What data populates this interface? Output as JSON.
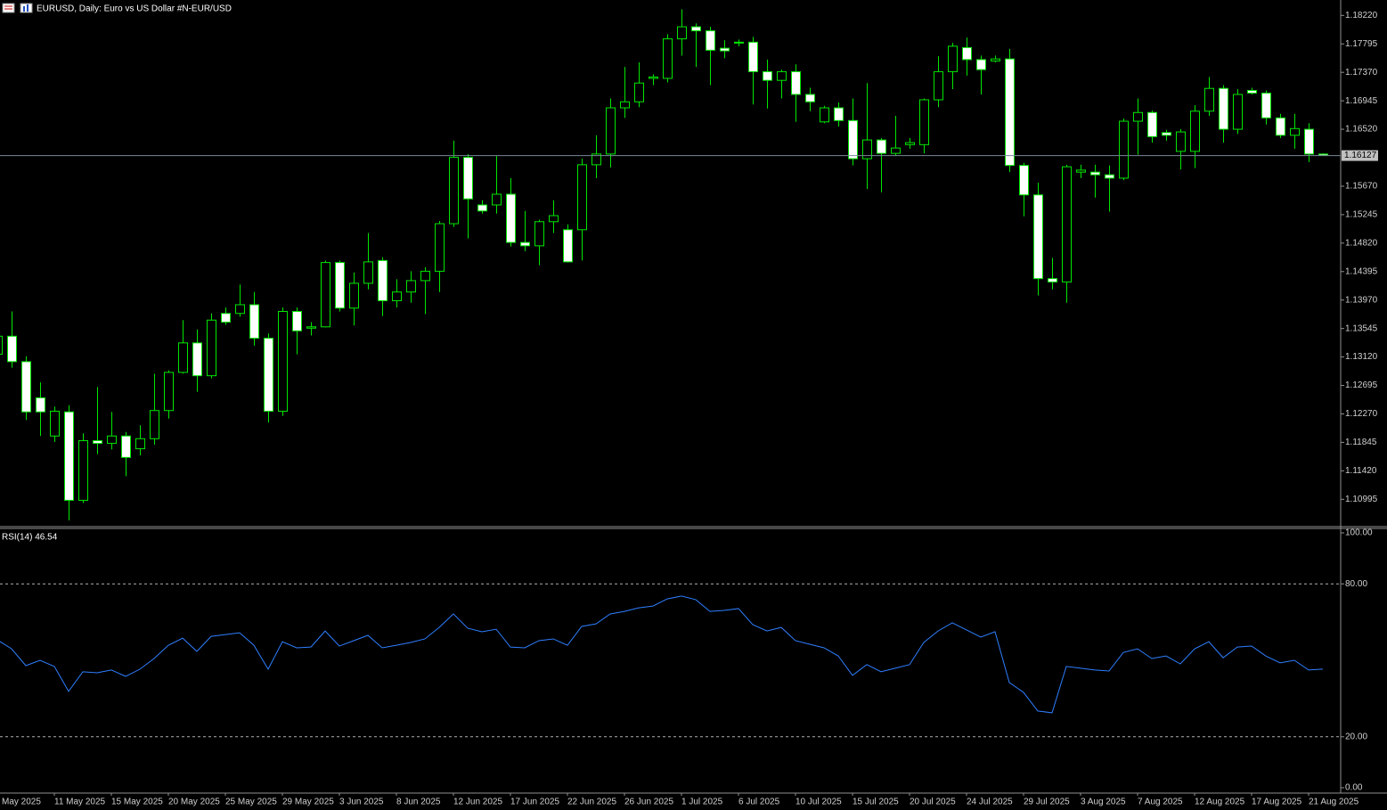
{
  "chart_data": [
    {
      "type": "candlestick",
      "title": "EURUSD, Daily:  Euro vs US Dollar #N-EUR/USD",
      "categories": [
        "May 2025",
        null,
        null,
        null,
        "11 May 2025",
        null,
        null,
        null,
        "15 May 2025",
        null,
        null,
        null,
        "20 May 2025",
        null,
        null,
        null,
        "25 May 2025",
        null,
        null,
        null,
        "29 May 2025",
        null,
        null,
        null,
        "3 Jun 2025",
        null,
        null,
        null,
        "8 Jun 2025",
        null,
        null,
        null,
        "12 Jun 2025",
        null,
        null,
        null,
        "17 Jun 2025",
        null,
        null,
        null,
        "22 Jun 2025",
        null,
        null,
        null,
        "26 Jun 2025",
        null,
        null,
        null,
        "1 Jul 2025",
        null,
        null,
        null,
        "6 Jul 2025",
        null,
        null,
        null,
        "10 Jul 2025",
        null,
        null,
        null,
        "15 Jul 2025",
        null,
        null,
        null,
        "20 Jul 2025",
        null,
        null,
        null,
        "24 Jul 2025",
        null,
        null,
        null,
        "29 Jul 2025",
        null,
        null,
        null,
        "3 Aug 2025",
        null,
        null,
        null,
        "7 Aug 2025",
        null,
        null,
        null,
        "12 Aug 2025",
        null,
        null,
        null,
        "17 Aug 2025",
        null,
        null,
        null,
        "21 Aug 2025",
        null
      ],
      "open": [
        1.1316,
        1.1343,
        1.1305,
        1.1251,
        1.1194,
        1.123,
        1.1098,
        1.1187,
        1.1183,
        1.1194,
        1.1175,
        1.119,
        1.1232,
        1.1289,
        1.1333,
        1.1284,
        1.1377,
        1.1377,
        1.139,
        1.134,
        1.1231,
        1.138,
        1.1355,
        1.1357,
        1.1453,
        1.1385,
        1.1422,
        1.1456,
        1.1396,
        1.1409,
        1.1426,
        1.144,
        1.1511,
        1.161,
        1.1539,
        1.1539,
        1.1555,
        1.1483,
        1.1478,
        1.1514,
        1.1502,
        1.1502,
        1.1599,
        1.1615,
        1.1684,
        1.1693,
        1.1728,
        1.1728,
        1.1787,
        1.1805,
        1.1799,
        1.1773,
        1.1781,
        1.1782,
        1.1738,
        1.1725,
        1.1738,
        1.1704,
        1.1663,
        1.1684,
        1.1665,
        1.1608,
        1.1636,
        1.1616,
        1.1629,
        1.1629,
        1.1696,
        1.1738,
        1.1774,
        1.1756,
        1.1754,
        1.1757,
        1.1598,
        1.1554,
        1.1429,
        1.1424,
        1.1588,
        1.1588,
        1.1584,
        1.1579,
        1.1664,
        1.1677,
        1.1647,
        1.1619,
        1.1619,
        1.1679,
        1.1713,
        1.1652,
        1.171,
        1.1706,
        1.1669,
        1.1643,
        1.1652,
        1.1615
      ],
      "high": [
        1.1353,
        1.138,
        1.1313,
        1.1274,
        1.1238,
        1.124,
        1.1198,
        1.1267,
        1.123,
        1.12,
        1.121,
        1.1287,
        1.1292,
        1.1367,
        1.1353,
        1.1377,
        1.1386,
        1.142,
        1.1409,
        1.1347,
        1.1386,
        1.1386,
        1.1364,
        1.1456,
        1.1456,
        1.1438,
        1.1497,
        1.1461,
        1.1428,
        1.144,
        1.1446,
        1.1515,
        1.1635,
        1.1615,
        1.1546,
        1.1612,
        1.1579,
        1.153,
        1.1517,
        1.1546,
        1.151,
        1.1608,
        1.1643,
        1.1698,
        1.1745,
        1.1752,
        1.1734,
        1.1794,
        1.1831,
        1.181,
        1.1805,
        1.1785,
        1.1786,
        1.179,
        1.1756,
        1.1741,
        1.1749,
        1.1714,
        1.1687,
        1.1692,
        1.1698,
        1.1721,
        1.1639,
        1.1672,
        1.1639,
        1.1698,
        1.1761,
        1.1781,
        1.1789,
        1.1762,
        1.1762,
        1.1772,
        1.1602,
        1.1572,
        1.146,
        1.1599,
        1.1599,
        1.1599,
        1.1598,
        1.1668,
        1.1698,
        1.168,
        1.1651,
        1.1652,
        1.1688,
        1.173,
        1.1718,
        1.1712,
        1.1714,
        1.171,
        1.1675,
        1.1675,
        1.1661,
        1.1616
      ],
      "low": [
        1.1313,
        1.1296,
        1.1218,
        1.1194,
        1.1185,
        1.1068,
        1.1094,
        1.1167,
        1.1174,
        1.1134,
        1.1165,
        1.1181,
        1.122,
        1.1287,
        1.126,
        1.128,
        1.136,
        1.1372,
        1.1329,
        1.1214,
        1.1224,
        1.1316,
        1.1344,
        1.1356,
        1.138,
        1.1359,
        1.1413,
        1.1373,
        1.1386,
        1.1393,
        1.1376,
        1.1409,
        1.1506,
        1.1489,
        1.1526,
        1.1526,
        1.1477,
        1.147,
        1.1449,
        1.1497,
        1.1453,
        1.1456,
        1.1579,
        1.1595,
        1.1669,
        1.1685,
        1.1718,
        1.1722,
        1.1762,
        1.1745,
        1.1718,
        1.1758,
        1.1776,
        1.1689,
        1.1683,
        1.1698,
        1.1663,
        1.1679,
        1.1661,
        1.1656,
        1.1598,
        1.1563,
        1.1558,
        1.1612,
        1.1623,
        1.1616,
        1.1685,
        1.1712,
        1.1732,
        1.1704,
        1.1752,
        1.1588,
        1.1522,
        1.1404,
        1.1413,
        1.1393,
        1.1579,
        1.155,
        1.1529,
        1.1576,
        1.1614,
        1.1632,
        1.1635,
        1.1592,
        1.1594,
        1.1672,
        1.1632,
        1.1645,
        1.1704,
        1.1659,
        1.1639,
        1.1623,
        1.1603,
        1.1612
      ],
      "close": [
        1.1343,
        1.1305,
        1.123,
        1.123,
        1.1231,
        1.1098,
        1.1187,
        1.1183,
        1.1194,
        1.1162,
        1.119,
        1.1232,
        1.1289,
        1.1333,
        1.1284,
        1.1367,
        1.1364,
        1.139,
        1.134,
        1.1231,
        1.138,
        1.1351,
        1.1357,
        1.1453,
        1.1385,
        1.1422,
        1.1454,
        1.1396,
        1.1409,
        1.1426,
        1.144,
        1.1511,
        1.161,
        1.1548,
        1.153,
        1.1555,
        1.1483,
        1.1478,
        1.1514,
        1.1523,
        1.1454,
        1.1599,
        1.1615,
        1.1684,
        1.1693,
        1.1721,
        1.173,
        1.1787,
        1.1805,
        1.1799,
        1.177,
        1.1769,
        1.1782,
        1.1738,
        1.1725,
        1.1738,
        1.1704,
        1.1693,
        1.1684,
        1.1665,
        1.1608,
        1.1636,
        1.1616,
        1.1624,
        1.1632,
        1.1696,
        1.1738,
        1.1776,
        1.1756,
        1.1741,
        1.1757,
        1.1598,
        1.1554,
        1.1429,
        1.1424,
        1.1596,
        1.1591,
        1.1584,
        1.1579,
        1.1664,
        1.1677,
        1.1641,
        1.1643,
        1.1648,
        1.1679,
        1.1713,
        1.1652,
        1.1704,
        1.1706,
        1.1669,
        1.1643,
        1.1653,
        1.1615,
        1.1613
      ],
      "current_price": 1.16127,
      "current_price_color": "#7a8799",
      "color": "#00e600",
      "bull_fill": "#000000",
      "bear_fill": "#ffffff",
      "ylim": [
        1.106,
        1.1845
      ],
      "yticks": [
        {
          "value": 1.1822,
          "label": "1.18220"
        },
        1.17795,
        {
          "value": 1.1737,
          "label": "1.17370"
        },
        1.16945,
        {
          "value": 1.1652,
          "label": "1.16520"
        },
        {
          "value": 1.1567,
          "label": "1.15670"
        },
        1.15245,
        {
          "value": 1.1482,
          "label": "1.14820"
        },
        1.14395,
        {
          "value": 1.1397,
          "label": "1.13970"
        },
        1.13545,
        {
          "value": 1.1312,
          "label": "1.13120"
        },
        1.12695,
        {
          "value": 1.1227,
          "label": "1.12270"
        },
        1.11845,
        {
          "value": 1.1142,
          "label": "1.11420"
        },
        1.10995
      ],
      "grid": false
    },
    {
      "type": "line",
      "title": "RSI(14) 46.54",
      "color": "#2f7fff",
      "values": [
        58.0,
        54.5,
        47.9,
        50.0,
        47.6,
        37.8,
        45.5,
        45.1,
        46.2,
        43.7,
        46.5,
        50.7,
        55.9,
        58.7,
        53.5,
        59.4,
        60.1,
        60.8,
        55.9,
        46.5,
        57.3,
        54.9,
        55.2,
        61.5,
        55.6,
        57.7,
        59.8,
        54.9,
        55.9,
        57.0,
        58.4,
        62.9,
        68.2,
        62.6,
        61.2,
        62.2,
        55.2,
        54.9,
        57.7,
        58.4,
        55.9,
        63.3,
        64.3,
        68.2,
        69.2,
        70.6,
        71.3,
        74.1,
        75.2,
        73.8,
        69.2,
        69.6,
        70.3,
        64.0,
        61.5,
        62.9,
        57.7,
        56.3,
        54.9,
        51.7,
        44.1,
        48.3,
        45.5,
        46.9,
        48.3,
        57.0,
        61.5,
        64.7,
        61.9,
        59.1,
        61.2,
        41.3,
        37.4,
        30.1,
        29.4,
        47.6,
        46.9,
        46.2,
        45.8,
        53.1,
        54.5,
        50.7,
        51.7,
        48.6,
        54.5,
        57.3,
        51.0,
        55.2,
        55.6,
        51.7,
        49.0,
        50.0,
        46.2,
        46.54
      ],
      "ylim": [
        0,
        100
      ],
      "yticks": [
        {
          "value": 100,
          "label": "100.00"
        },
        {
          "value": 80,
          "label": "80.00"
        },
        {
          "value": 20,
          "label": "20.00"
        },
        {
          "value": 0,
          "label": "0.00"
        }
      ]
    }
  ]
}
